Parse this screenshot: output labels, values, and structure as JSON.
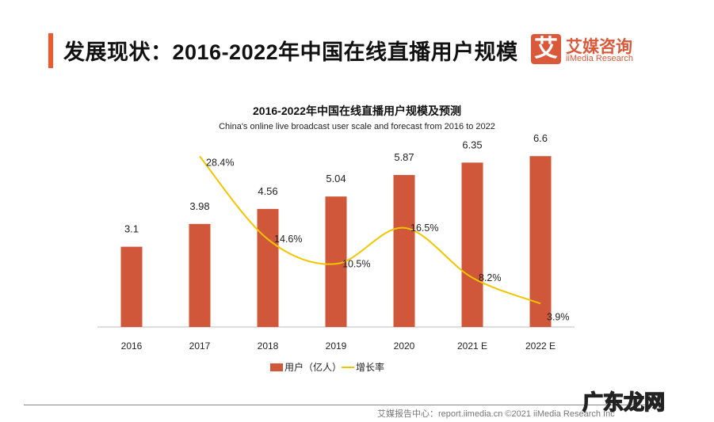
{
  "header": {
    "title": "发展现状：2016-2022年中国在线直播用户规模",
    "logo_mark": "艾",
    "logo_cn": "艾媒咨询",
    "logo_en": "iiMedia Research"
  },
  "chart_data": {
    "type": "bar+line",
    "title": "2016-2022年中国在线直播用户规模及预测",
    "subtitle": "China's online live broadcast user scale and forecast from 2016 to 2022",
    "categories": [
      "2016",
      "2017",
      "2018",
      "2019",
      "2020",
      "2021 E",
      "2022 E"
    ],
    "series": [
      {
        "name": "用户（亿人）",
        "type": "bar",
        "color": "#d0573a",
        "values": [
          3.1,
          3.98,
          4.56,
          5.04,
          5.87,
          6.35,
          6.6
        ],
        "labels": [
          "3.1",
          "3.98",
          "4.56",
          "5.04",
          "5.87",
          "6.35",
          "6.6"
        ]
      },
      {
        "name": "增长率",
        "type": "line",
        "color": "#f2c500",
        "values": [
          null,
          28.4,
          14.6,
          10.5,
          16.5,
          8.2,
          3.9
        ],
        "labels": [
          "",
          "28.4%",
          "14.6%",
          "10.5%",
          "16.5%",
          "8.2%",
          "3.9%"
        ]
      }
    ],
    "legend": "bottom",
    "grid": false
  },
  "footer": {
    "source": "艾媒报告中心：report.iimedia.cn   ©2021  iiMedia Research  Inc",
    "watermark": "广东龙网"
  }
}
